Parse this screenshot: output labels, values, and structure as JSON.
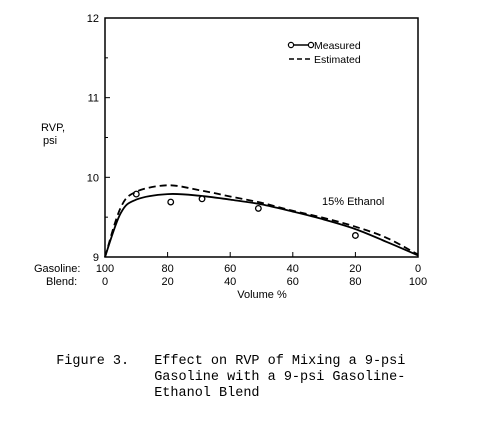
{
  "chart_data": {
    "type": "line",
    "ylabel_line1": "RVP,",
    "ylabel_line2": "psi",
    "xlabel": "Volume %",
    "x_row1_label": "Gasoline:",
    "x_row2_label": "Blend:",
    "x_ticks_gasoline": [
      "100",
      "80",
      "60",
      "40",
      "20",
      "0"
    ],
    "x_ticks_blend": [
      "0",
      "20",
      "40",
      "60",
      "80",
      "100"
    ],
    "x_tick_values": [
      0,
      20,
      40,
      60,
      80,
      100
    ],
    "ylim": [
      9,
      12
    ],
    "xlim": [
      0,
      100
    ],
    "y_ticks": [
      "9",
      "10",
      "11",
      "12"
    ],
    "y_tick_values": [
      9,
      10,
      11,
      12
    ],
    "annotation": "15% Ethanol",
    "legend_position": "top-right",
    "series": [
      {
        "name": "Measured",
        "style": "line-with-markers",
        "color": "#000000",
        "x": [
          0,
          5,
          10,
          20,
          30,
          40,
          50,
          60,
          70,
          80,
          90,
          100
        ],
        "y": [
          9.0,
          9.55,
          9.72,
          9.79,
          9.77,
          9.72,
          9.66,
          9.57,
          9.47,
          9.35,
          9.19,
          9.02
        ],
        "points_x": [
          10,
          21,
          31,
          49,
          80
        ],
        "points_y": [
          9.79,
          9.69,
          9.73,
          9.61,
          9.27
        ]
      },
      {
        "name": "Estimated",
        "style": "dashed",
        "color": "#000000",
        "x": [
          0,
          5,
          10,
          20,
          30,
          40,
          50,
          60,
          70,
          80,
          90,
          100
        ],
        "y": [
          9.0,
          9.62,
          9.82,
          9.9,
          9.84,
          9.76,
          9.68,
          9.58,
          9.49,
          9.38,
          9.24,
          9.03
        ]
      }
    ]
  },
  "caption": {
    "number": "Figure 3.",
    "line1": "Effect on RVP of Mixing a 9-psi",
    "line2": "Gasoline with a 9-psi Gasoline-",
    "line3": "Ethanol Blend"
  }
}
